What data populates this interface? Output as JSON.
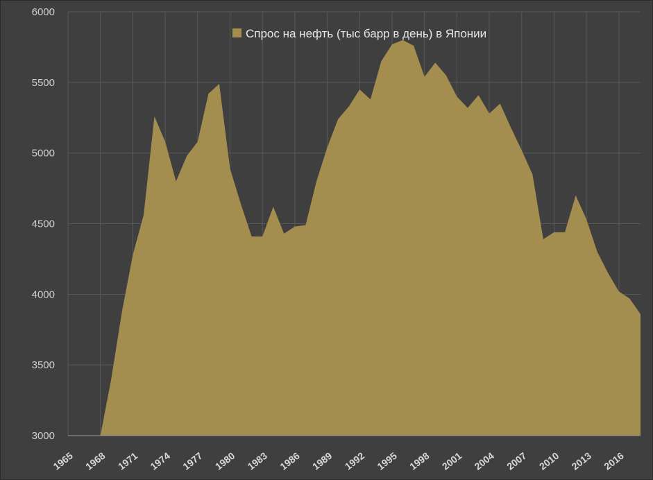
{
  "chart_data": {
    "type": "area",
    "title": "",
    "xlabel": "",
    "ylabel": "",
    "x_tick_labels": [
      "1965",
      "1968",
      "1971",
      "1974",
      "1977",
      "1980",
      "1983",
      "1986",
      "1989",
      "1992",
      "1995",
      "1998",
      "2001",
      "2004",
      "2007",
      "2010",
      "2013",
      "2016"
    ],
    "y_tick_labels": [
      "3000",
      "3500",
      "4000",
      "4500",
      "5000",
      "5500",
      "6000"
    ],
    "xlim": [
      1965,
      2018
    ],
    "ylim": [
      3000,
      6000
    ],
    "grid": true,
    "legend_position": "top-center",
    "series": [
      {
        "name": "Спрос на нефть (тыс барр в день) в Японии",
        "color": "#a38d4f",
        "x": [
          1965,
          1966,
          1967,
          1968,
          1969,
          1970,
          1971,
          1972,
          1973,
          1974,
          1975,
          1976,
          1977,
          1978,
          1979,
          1980,
          1981,
          1982,
          1983,
          1984,
          1985,
          1986,
          1987,
          1988,
          1989,
          1990,
          1991,
          1992,
          1993,
          1994,
          1995,
          1996,
          1997,
          1998,
          1999,
          2000,
          2001,
          2002,
          2003,
          2004,
          2005,
          2006,
          2007,
          2008,
          2009,
          2010,
          2011,
          2012,
          2013,
          2014,
          2015,
          2016,
          2017,
          2018
        ],
        "values": [
          3000,
          3000,
          3000,
          3000,
          3400,
          3880,
          4280,
          4560,
          5260,
          5080,
          4800,
          4980,
          5080,
          5420,
          5490,
          4890,
          4640,
          4410,
          4410,
          4620,
          4430,
          4480,
          4490,
          4800,
          5040,
          5240,
          5330,
          5450,
          5380,
          5650,
          5770,
          5800,
          5760,
          5540,
          5640,
          5550,
          5400,
          5320,
          5410,
          5280,
          5350,
          5180,
          5020,
          4850,
          4390,
          4440,
          4440,
          4700,
          4530,
          4300,
          4150,
          4020,
          3970,
          3860
        ]
      }
    ]
  }
}
